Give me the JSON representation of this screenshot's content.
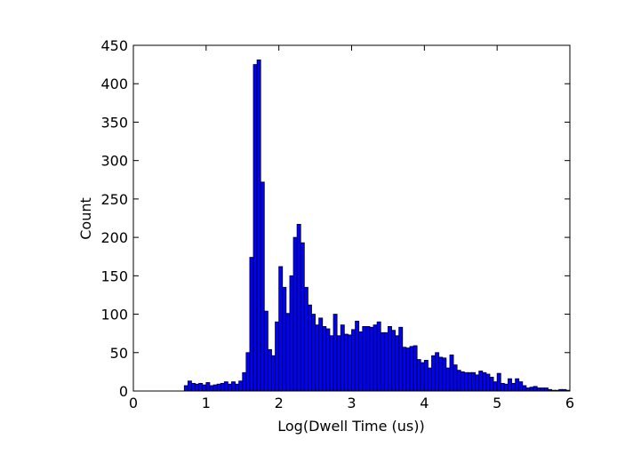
{
  "chart_data": {
    "type": "histogram",
    "xlabel": "Log(Dwell Time (us))",
    "ylabel": "Count",
    "color": "#0000ff",
    "edgecolor": "#000000",
    "bins": [
      0.7,
      0.75,
      0.8,
      0.85,
      0.9,
      0.95,
      1.0,
      1.05,
      1.1,
      1.15,
      1.2,
      1.25,
      1.3,
      1.35,
      1.4,
      1.45,
      1.5,
      1.55,
      1.6,
      1.65,
      1.7,
      1.75,
      1.8,
      1.85,
      1.9,
      1.95,
      2.0,
      2.05,
      2.1,
      2.15,
      2.2,
      2.25,
      2.3,
      2.35,
      2.4,
      2.45,
      2.5,
      2.55,
      2.6,
      2.65,
      2.7,
      2.75,
      2.8,
      2.85,
      2.9,
      2.95,
      3.0,
      3.05,
      3.1,
      3.15,
      3.2,
      3.25,
      3.3,
      3.35,
      3.4,
      3.45,
      3.5,
      3.55,
      3.6,
      3.65,
      3.7,
      3.75,
      3.8,
      3.85,
      3.9,
      3.95,
      4.0,
      4.05,
      4.1,
      4.15,
      4.2,
      4.25,
      4.3,
      4.35,
      4.4,
      4.45,
      4.5,
      4.55,
      4.6,
      4.65,
      4.7,
      4.75,
      4.8,
      4.85,
      4.9,
      4.95,
      5.0,
      5.05,
      5.1,
      5.15,
      5.2,
      5.25,
      5.3,
      5.35,
      5.4,
      5.45,
      5.5,
      5.55,
      5.6,
      5.65,
      5.7,
      5.75,
      5.8,
      5.85,
      5.9,
      5.95,
      6.0
    ],
    "values": [
      7,
      13,
      10,
      9,
      10,
      8,
      11,
      7,
      8,
      9,
      10,
      12,
      9,
      12,
      9,
      13,
      24,
      50,
      174,
      425,
      431,
      272,
      104,
      54,
      46,
      90,
      162,
      135,
      101,
      150,
      200,
      217,
      193,
      135,
      112,
      100,
      86,
      95,
      84,
      81,
      72,
      100,
      72,
      86,
      74,
      73,
      80,
      91,
      77,
      84,
      84,
      83,
      86,
      90,
      76,
      76,
      84,
      79,
      72,
      83,
      57,
      56,
      58,
      59,
      41,
      37,
      40,
      30,
      46,
      50,
      44,
      43,
      30,
      47,
      34,
      27,
      25,
      24,
      24,
      24,
      21,
      26,
      24,
      22,
      18,
      12,
      23,
      10,
      9,
      16,
      10,
      16,
      12,
      7,
      4,
      5,
      6,
      4,
      4,
      4,
      2,
      1,
      1,
      2,
      2,
      1
    ],
    "xlim": [
      0,
      6
    ],
    "ylim": [
      0,
      450
    ],
    "xticks": [
      0,
      1,
      2,
      3,
      4,
      5,
      6
    ],
    "yticks": [
      0,
      50,
      100,
      150,
      200,
      250,
      300,
      350,
      400,
      450
    ]
  }
}
